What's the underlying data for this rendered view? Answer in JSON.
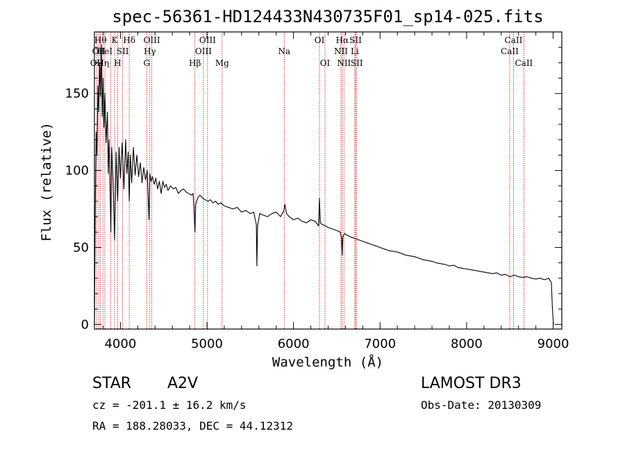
{
  "chart_data": {
    "type": "line",
    "title": "spec-56361-HD124433N430735F01_sp14-025.fits",
    "xlabel": "Wavelength (Å)",
    "ylabel": "Flux (relative)",
    "xlim": [
      3700,
      9100
    ],
    "ylim": [
      -3,
      190
    ],
    "xticks": [
      4000,
      5000,
      6000,
      7000,
      8000,
      9000
    ],
    "yticks": [
      0,
      50,
      100,
      150
    ],
    "grid": false,
    "legend": "none",
    "series": [
      {
        "name": "spectrum",
        "color": "#000000",
        "x": [
          3700,
          3710,
          3720,
          3730,
          3740,
          3750,
          3760,
          3770,
          3780,
          3790,
          3800,
          3810,
          3820,
          3835,
          3850,
          3860,
          3870,
          3889,
          3900,
          3915,
          3933,
          3950,
          3968,
          3985,
          4000,
          4020,
          4040,
          4060,
          4075,
          4090,
          4102,
          4115,
          4130,
          4150,
          4170,
          4190,
          4210,
          4230,
          4250,
          4270,
          4290,
          4310,
          4330,
          4340,
          4355,
          4370,
          4390,
          4410,
          4430,
          4450,
          4471,
          4490,
          4510,
          4530,
          4550,
          4580,
          4610,
          4640,
          4670,
          4700,
          4730,
          4760,
          4790,
          4820,
          4840,
          4850,
          4861,
          4870,
          4880,
          4900,
          4920,
          4950,
          4980,
          5010,
          5040,
          5070,
          5100,
          5130,
          5160,
          5200,
          5250,
          5300,
          5350,
          5400,
          5450,
          5500,
          5540,
          5570,
          5577,
          5585,
          5610,
          5650,
          5700,
          5750,
          5800,
          5850,
          5890,
          5900,
          5920,
          5950,
          6000,
          6050,
          6100,
          6150,
          6200,
          6250,
          6290,
          6300,
          6310,
          6330,
          6370,
          6400,
          6450,
          6500,
          6540,
          6555,
          6563,
          6570,
          6590,
          6620,
          6650,
          6700,
          6750,
          6800,
          6850,
          6900,
          6950,
          7000,
          7050,
          7100,
          7150,
          7200,
          7250,
          7300,
          7350,
          7400,
          7450,
          7500,
          7550,
          7600,
          7650,
          7700,
          7750,
          7800,
          7850,
          7900,
          7950,
          8000,
          8050,
          8100,
          8150,
          8200,
          8250,
          8300,
          8350,
          8400,
          8450,
          8500,
          8550,
          8600,
          8650,
          8700,
          8750,
          8800,
          8850,
          8900,
          8950,
          8980,
          8990,
          9000,
          9005
        ],
        "y": [
          0,
          75,
          125,
          110,
          155,
          138,
          170,
          148,
          182,
          135,
          160,
          128,
          150,
          118,
          138,
          98,
          120,
          60,
          115,
          92,
          55,
          112,
          80,
          115,
          95,
          118,
          88,
          120,
          98,
          112,
          80,
          110,
          92,
          115,
          97,
          110,
          96,
          105,
          92,
          102,
          94,
          100,
          68,
          98,
          93,
          96,
          91,
          95,
          88,
          93,
          85,
          93,
          89,
          91,
          87,
          90,
          88,
          89,
          85,
          87,
          88,
          86,
          85,
          84,
          85,
          75,
          60,
          78,
          80,
          83,
          84,
          82,
          81,
          80,
          81,
          79,
          80,
          78,
          79,
          77,
          76,
          75,
          76,
          73,
          74,
          72,
          73,
          65,
          38,
          64,
          72,
          71,
          70,
          72,
          73,
          70,
          74,
          78,
          72,
          70,
          68,
          69,
          67,
          66,
          68,
          67,
          64,
          82,
          66,
          65,
          64,
          63,
          62,
          61,
          60,
          56,
          45,
          57,
          59,
          58,
          57,
          56,
          55,
          54,
          53,
          52,
          51,
          50,
          49,
          48,
          47.5,
          47,
          46,
          45,
          44.5,
          44,
          43,
          42,
          41.5,
          41,
          40,
          39.5,
          39,
          38,
          38.5,
          37,
          36.5,
          36,
          35.5,
          35,
          34.5,
          34,
          33.5,
          33,
          33.5,
          32,
          32.5,
          31,
          32,
          31,
          30.5,
          31,
          30,
          29.5,
          30,
          29,
          30,
          27,
          12,
          3,
          0
        ]
      }
    ],
    "line_markers": [
      {
        "x": 3727,
        "label": "OII",
        "row": 3
      },
      {
        "x": 3750,
        "label": "OII",
        "row": 2
      },
      {
        "x": 3770,
        "label": "Hθ",
        "row": 1
      },
      {
        "x": 3798,
        "label": "Hη",
        "row": 3
      },
      {
        "x": 3820,
        "label": "HeI",
        "row": 2
      },
      {
        "x": 3889,
        "label": "",
        "row": 0
      },
      {
        "x": 3933,
        "label": "K",
        "row": 1
      },
      {
        "x": 3968,
        "label": "H",
        "row": 3
      },
      {
        "x": 4026,
        "label": "SII",
        "row": 2
      },
      {
        "x": 4102,
        "label": "Hδ",
        "row": 1
      },
      {
        "x": 4304,
        "label": "G",
        "row": 3
      },
      {
        "x": 4340,
        "label": "Hγ",
        "row": 2
      },
      {
        "x": 4363,
        "label": "OIII",
        "row": 1
      },
      {
        "x": 4861,
        "label": "Hβ",
        "row": 3
      },
      {
        "x": 4959,
        "label": "OIII",
        "row": 2
      },
      {
        "x": 5007,
        "label": "OIII",
        "row": 1
      },
      {
        "x": 5175,
        "label": "Mg",
        "row": 3
      },
      {
        "x": 5893,
        "label": "Na",
        "row": 2
      },
      {
        "x": 6300,
        "label": "OI",
        "row": 1
      },
      {
        "x": 6364,
        "label": "OI",
        "row": 3
      },
      {
        "x": 6548,
        "label": "NII",
        "row": 2
      },
      {
        "x": 6563,
        "label": "Hα",
        "row": 1
      },
      {
        "x": 6583,
        "label": "NII",
        "row": 3
      },
      {
        "x": 6708,
        "label": "Li",
        "row": 2
      },
      {
        "x": 6717,
        "label": "SII",
        "row": 1
      },
      {
        "x": 6731,
        "label": "SII",
        "row": 3
      },
      {
        "x": 8498,
        "label": "CaII",
        "row": 2
      },
      {
        "x": 8542,
        "label": "CaII",
        "row": 1
      },
      {
        "x": 8662,
        "label": "CaII",
        "row": 3
      }
    ]
  },
  "info": {
    "class_label": "STAR",
    "subclass": "A2V",
    "survey": "LAMOST DR3",
    "cz": "cz = -201.1 ± 16.2 km/s",
    "obs_date": "Obs-Date: 20130309",
    "coords": "RA = 188.28033, DEC =  44.12312"
  }
}
